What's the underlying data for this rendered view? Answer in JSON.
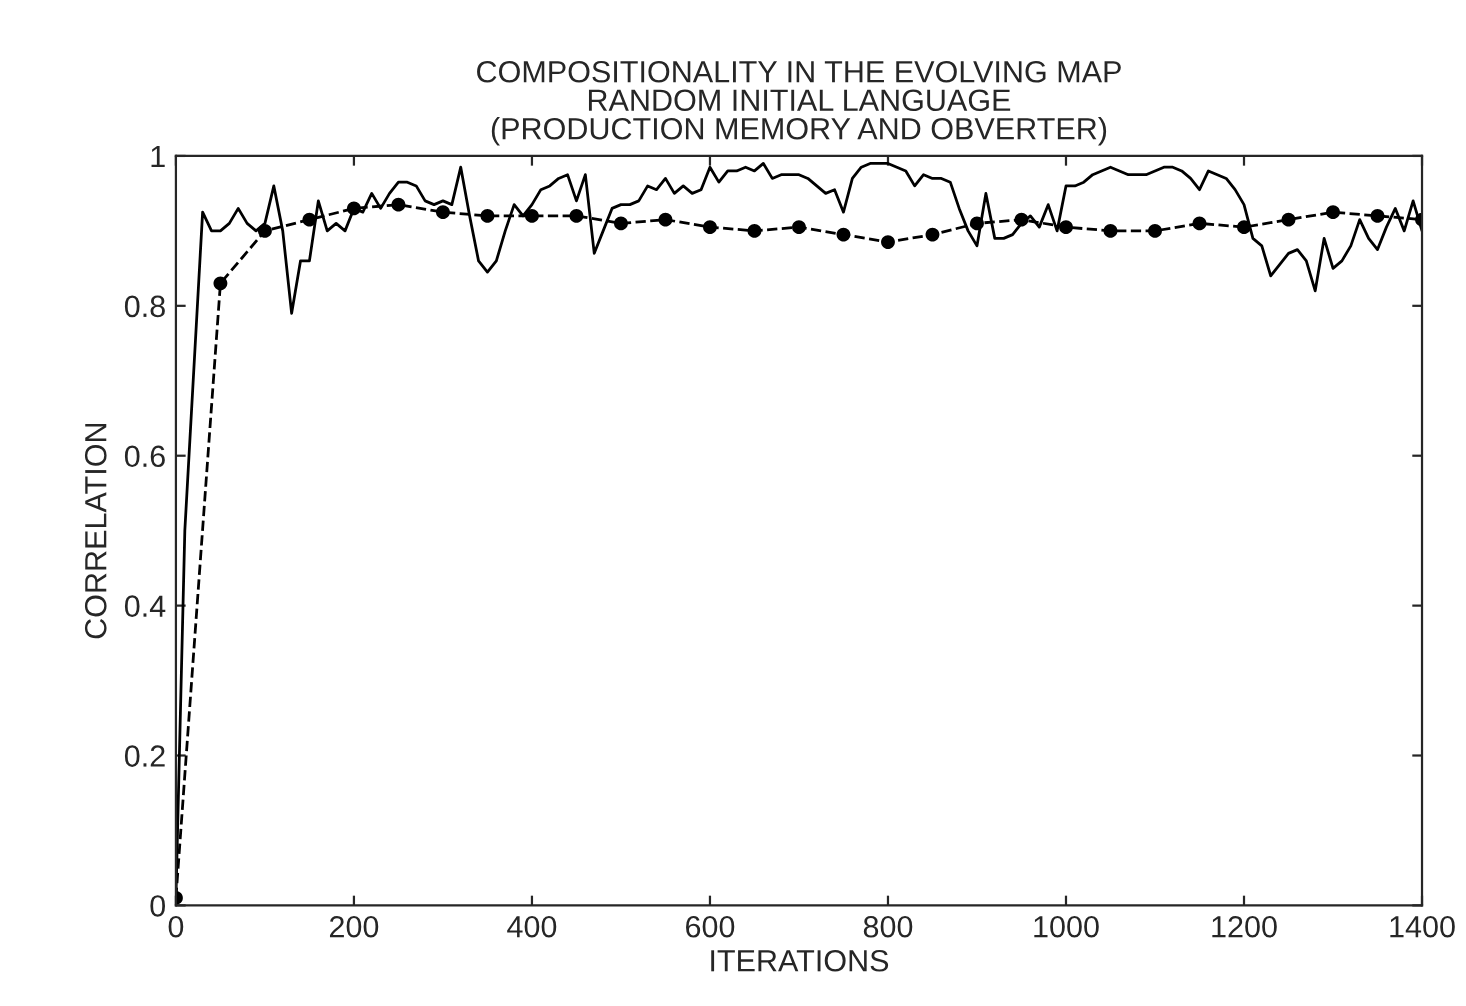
{
  "chart_data": {
    "type": "line",
    "title": "COMPOSITIONALITY IN THE EVOLVING MAP\nRANDOM INITIAL LANGUAGE\n(PRODUCTION MEMORY AND OBVERTER)",
    "xlabel": "ITERATIONS",
    "ylabel": "CORRELATION",
    "xlim": [
      0,
      1400
    ],
    "xticks": [
      0,
      200,
      400,
      600,
      800,
      1000,
      1200,
      1400
    ],
    "ylim": [
      0,
      1
    ],
    "yticks": [
      0,
      0.2,
      0.4,
      0.6,
      0.8,
      1
    ],
    "grid": false,
    "legend": false,
    "series": [
      {
        "color": "#000000",
        "line_style": "solid",
        "marker": "none",
        "x": [
          0,
          10,
          30,
          40,
          50,
          60,
          70,
          80,
          90,
          100,
          110,
          120,
          130,
          140,
          150,
          160,
          170,
          180,
          190,
          200,
          210,
          220,
          230,
          240,
          250,
          260,
          270,
          280,
          290,
          300,
          310,
          320,
          330,
          340,
          350,
          360,
          370,
          380,
          390,
          400,
          410,
          420,
          430,
          440,
          450,
          460,
          470,
          480,
          490,
          500,
          510,
          520,
          530,
          540,
          550,
          560,
          570,
          580,
          590,
          600,
          610,
          620,
          630,
          640,
          650,
          660,
          670,
          680,
          690,
          700,
          710,
          720,
          730,
          740,
          750,
          760,
          770,
          780,
          790,
          800,
          810,
          820,
          830,
          840,
          850,
          860,
          870,
          880,
          890,
          900,
          910,
          920,
          930,
          940,
          950,
          960,
          970,
          980,
          990,
          1000,
          1010,
          1020,
          1030,
          1040,
          1050,
          1060,
          1070,
          1080,
          1090,
          1100,
          1110,
          1120,
          1130,
          1140,
          1150,
          1160,
          1170,
          1180,
          1190,
          1200,
          1210,
          1220,
          1230,
          1240,
          1250,
          1260,
          1270,
          1280,
          1290,
          1300,
          1310,
          1320,
          1330,
          1340,
          1350,
          1360,
          1370,
          1380,
          1390,
          1400
        ],
        "values": [
          0.01,
          0.5,
          0.925,
          0.9,
          0.9,
          0.91,
          0.93,
          0.91,
          0.9,
          0.91,
          0.96,
          0.9,
          0.79,
          0.86,
          0.86,
          0.94,
          0.9,
          0.91,
          0.9,
          0.93,
          0.925,
          0.95,
          0.93,
          0.95,
          0.965,
          0.965,
          0.96,
          0.94,
          0.935,
          0.94,
          0.935,
          0.985,
          0.92,
          0.86,
          0.845,
          0.86,
          0.9,
          0.935,
          0.92,
          0.935,
          0.955,
          0.96,
          0.97,
          0.975,
          0.94,
          0.975,
          0.87,
          0.9,
          0.93,
          0.935,
          0.935,
          0.94,
          0.96,
          0.955,
          0.97,
          0.95,
          0.96,
          0.95,
          0.955,
          0.985,
          0.965,
          0.98,
          0.98,
          0.985,
          0.98,
          0.99,
          0.97,
          0.975,
          0.975,
          0.975,
          0.97,
          0.96,
          0.95,
          0.955,
          0.925,
          0.97,
          0.985,
          0.99,
          0.99,
          0.99,
          0.985,
          0.98,
          0.96,
          0.975,
          0.97,
          0.97,
          0.965,
          0.93,
          0.9,
          0.88,
          0.95,
          0.89,
          0.89,
          0.895,
          0.91,
          0.92,
          0.905,
          0.935,
          0.9,
          0.96,
          0.96,
          0.965,
          0.975,
          0.98,
          0.985,
          0.98,
          0.975,
          0.975,
          0.975,
          0.98,
          0.985,
          0.985,
          0.98,
          0.97,
          0.955,
          0.98,
          0.975,
          0.97,
          0.955,
          0.935,
          0.89,
          0.88,
          0.84,
          0.855,
          0.87,
          0.875,
          0.86,
          0.82,
          0.89,
          0.85,
          0.86,
          0.88,
          0.915,
          0.89,
          0.875,
          0.905,
          0.93,
          0.9,
          0.94,
          0.9
        ]
      },
      {
        "color": "#000000",
        "line_style": "dashed",
        "marker": "circle",
        "x": [
          0,
          50,
          100,
          150,
          200,
          250,
          300,
          350,
          400,
          450,
          500,
          550,
          600,
          650,
          700,
          750,
          800,
          850,
          900,
          950,
          1000,
          1050,
          1100,
          1150,
          1200,
          1250,
          1300,
          1350,
          1400
        ],
        "values": [
          0.01,
          0.83,
          0.9,
          0.915,
          0.93,
          0.935,
          0.925,
          0.92,
          0.92,
          0.92,
          0.91,
          0.915,
          0.905,
          0.9,
          0.905,
          0.895,
          0.885,
          0.895,
          0.91,
          0.915,
          0.905,
          0.9,
          0.9,
          0.91,
          0.905,
          0.915,
          0.925,
          0.92,
          0.915
        ]
      }
    ]
  }
}
